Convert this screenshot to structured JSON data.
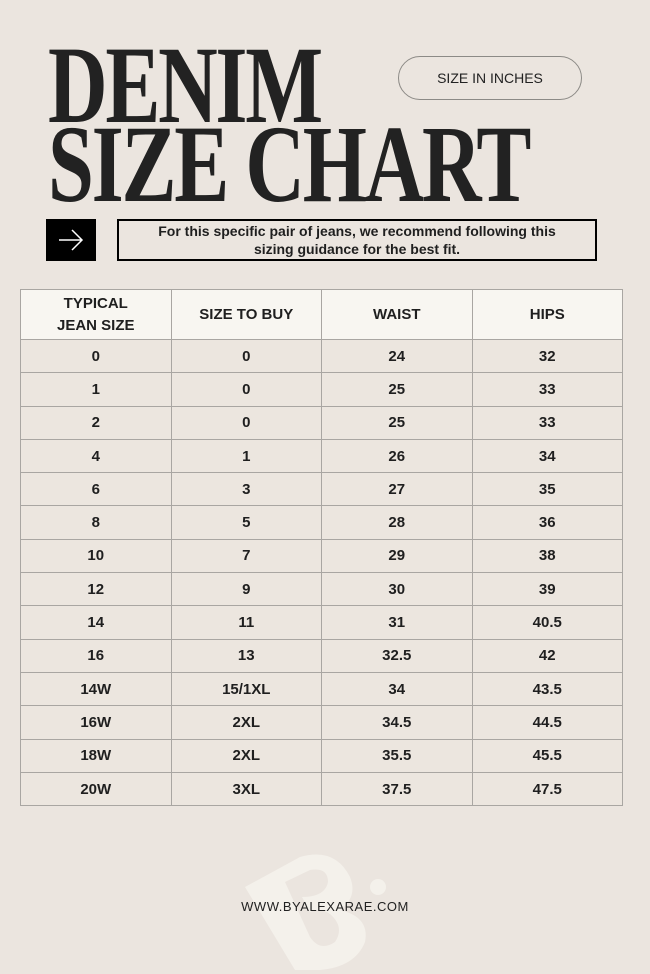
{
  "title": {
    "line1": "DENIM",
    "line2": "SIZE CHART"
  },
  "badge": "SIZE IN INCHES",
  "icons": {
    "arrow": "arrow-right-icon"
  },
  "note": "For this specific pair of jeans, we recommend following this sizing guidance for the best fit.",
  "table": {
    "headers": [
      "TYPICAL JEAN SIZE",
      "SIZE TO BUY",
      "WAIST",
      "HIPS"
    ],
    "rows": [
      [
        "0",
        "0",
        "24",
        "32"
      ],
      [
        "1",
        "0",
        "25",
        "33"
      ],
      [
        "2",
        "0",
        "25",
        "33"
      ],
      [
        "4",
        "1",
        "26",
        "34"
      ],
      [
        "6",
        "3",
        "27",
        "35"
      ],
      [
        "8",
        "5",
        "28",
        "36"
      ],
      [
        "10",
        "7",
        "29",
        "38"
      ],
      [
        "12",
        "9",
        "30",
        "39"
      ],
      [
        "14",
        "11",
        "31",
        "40.5"
      ],
      [
        "16",
        "13",
        "32.5",
        "42"
      ],
      [
        "14W",
        "15/1XL",
        "34",
        "43.5"
      ],
      [
        "16W",
        "2XL",
        "34.5",
        "44.5"
      ],
      [
        "18W",
        "2XL",
        "35.5",
        "45.5"
      ],
      [
        "20W",
        "3XL",
        "37.5",
        "47.5"
      ]
    ]
  },
  "watermark": "B.",
  "footer": "WWW.BYALEXARAE.COM"
}
